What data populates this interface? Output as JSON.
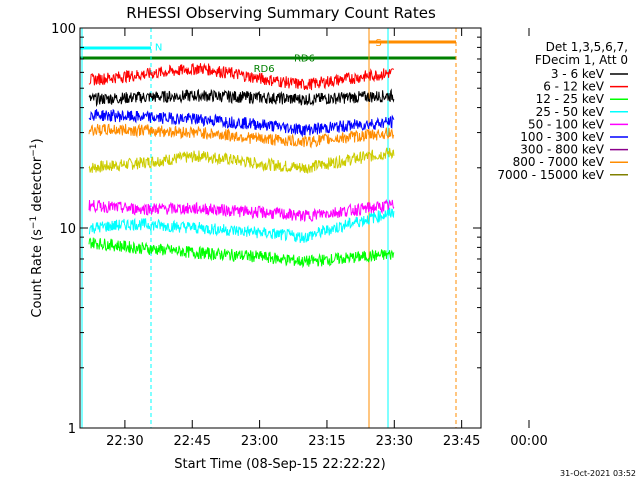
{
  "chart_data": {
    "type": "line",
    "title": "RHESSI Observing Summary Count Rates",
    "xlabel": "Start Time (08-Sep-15 22:22:22)",
    "ylabel": "Count Rate (s⁻¹ detector⁻¹)",
    "ylabel_parts": [
      "Count Rate (s",
      "−1",
      " detector",
      "−1",
      ")"
    ],
    "y_scale": "log",
    "xlim_min": [
      -2,
      83
    ],
    "ylim": [
      1,
      100
    ],
    "x_ticks": [
      {
        "label": "22:30",
        "min": 8
      },
      {
        "label": "22:45",
        "min": 23
      },
      {
        "label": "23:00",
        "min": 38
      },
      {
        "label": "23:15",
        "min": 53
      },
      {
        "label": "23:30",
        "min": 68
      },
      {
        "label": "23:45",
        "min": 83
      },
      {
        "label": "00:00",
        "min": 98
      }
    ],
    "y_ticks": [
      {
        "label": "100",
        "value": 100
      },
      {
        "label": "10",
        "value": 10
      },
      {
        "label": "1",
        "value": 1
      }
    ],
    "legend_header": [
      "Det 1,3,5,6,7,",
      "FDecim 1, Att 0"
    ],
    "series": [
      {
        "name": "3 - 6 keV",
        "color": "#000000",
        "t": [
          0,
          10,
          25,
          38,
          48,
          68
        ],
        "v": [
          44,
          45,
          46,
          45,
          44,
          46
        ]
      },
      {
        "name": "6 - 12 keV",
        "color": "#ff0000",
        "t": [
          0,
          10,
          25,
          38,
          48,
          68
        ],
        "v": [
          55,
          58,
          63,
          56,
          52,
          60
        ]
      },
      {
        "name": "12 - 25 keV",
        "color": "#00ff00",
        "t": [
          0,
          10,
          25,
          38,
          48,
          68
        ],
        "v": [
          8.5,
          8.0,
          7.5,
          7.2,
          6.8,
          7.4
        ]
      },
      {
        "name": "25 - 50 keV",
        "color": "#00ffff",
        "t": [
          0,
          10,
          25,
          38,
          48,
          68
        ],
        "v": [
          10,
          10.5,
          10,
          9.5,
          9,
          12
        ]
      },
      {
        "name": "50 - 100 keV",
        "color": "#ff00ff",
        "t": [
          0,
          10,
          25,
          38,
          48,
          68
        ],
        "v": [
          13,
          12.5,
          12.5,
          12,
          11.5,
          13
        ]
      },
      {
        "name": "100 - 300 keV",
        "color": "#0000ff",
        "t": [
          0,
          10,
          25,
          38,
          48,
          68
        ],
        "v": [
          37,
          36,
          35,
          33,
          31,
          34
        ]
      },
      {
        "name": "300 - 800 keV",
        "color": "#8b008b",
        "t": [],
        "v": []
      },
      {
        "name": "800 - 7000 keV",
        "color": "#ff8c00",
        "t": [
          0,
          10,
          25,
          38,
          48,
          68
        ],
        "v": [
          31,
          31,
          30,
          28,
          27,
          30
        ]
      },
      {
        "name": "7000 - 15000 keV",
        "color": "#808000",
        "t": [],
        "v": []
      }
    ],
    "extra_series": [
      {
        "color": "#cccc00",
        "t": [
          0,
          10,
          25,
          38,
          48,
          68
        ],
        "v": [
          20,
          21,
          23,
          21,
          20,
          24
        ]
      }
    ],
    "annotations": [
      {
        "text": "N",
        "color": "#00ffff",
        "t": 15.5,
        "v": 81
      },
      {
        "text": "S",
        "color": "#ff8c00",
        "t": 64.5,
        "v": 85
      },
      {
        "text": "RD6",
        "color": "#008000",
        "t": 39,
        "v": 63
      },
      {
        "text": "RD6",
        "color": "#008000",
        "t": 48,
        "v": 71
      }
    ],
    "footer_date": "31-Oct-2021 03:52"
  }
}
